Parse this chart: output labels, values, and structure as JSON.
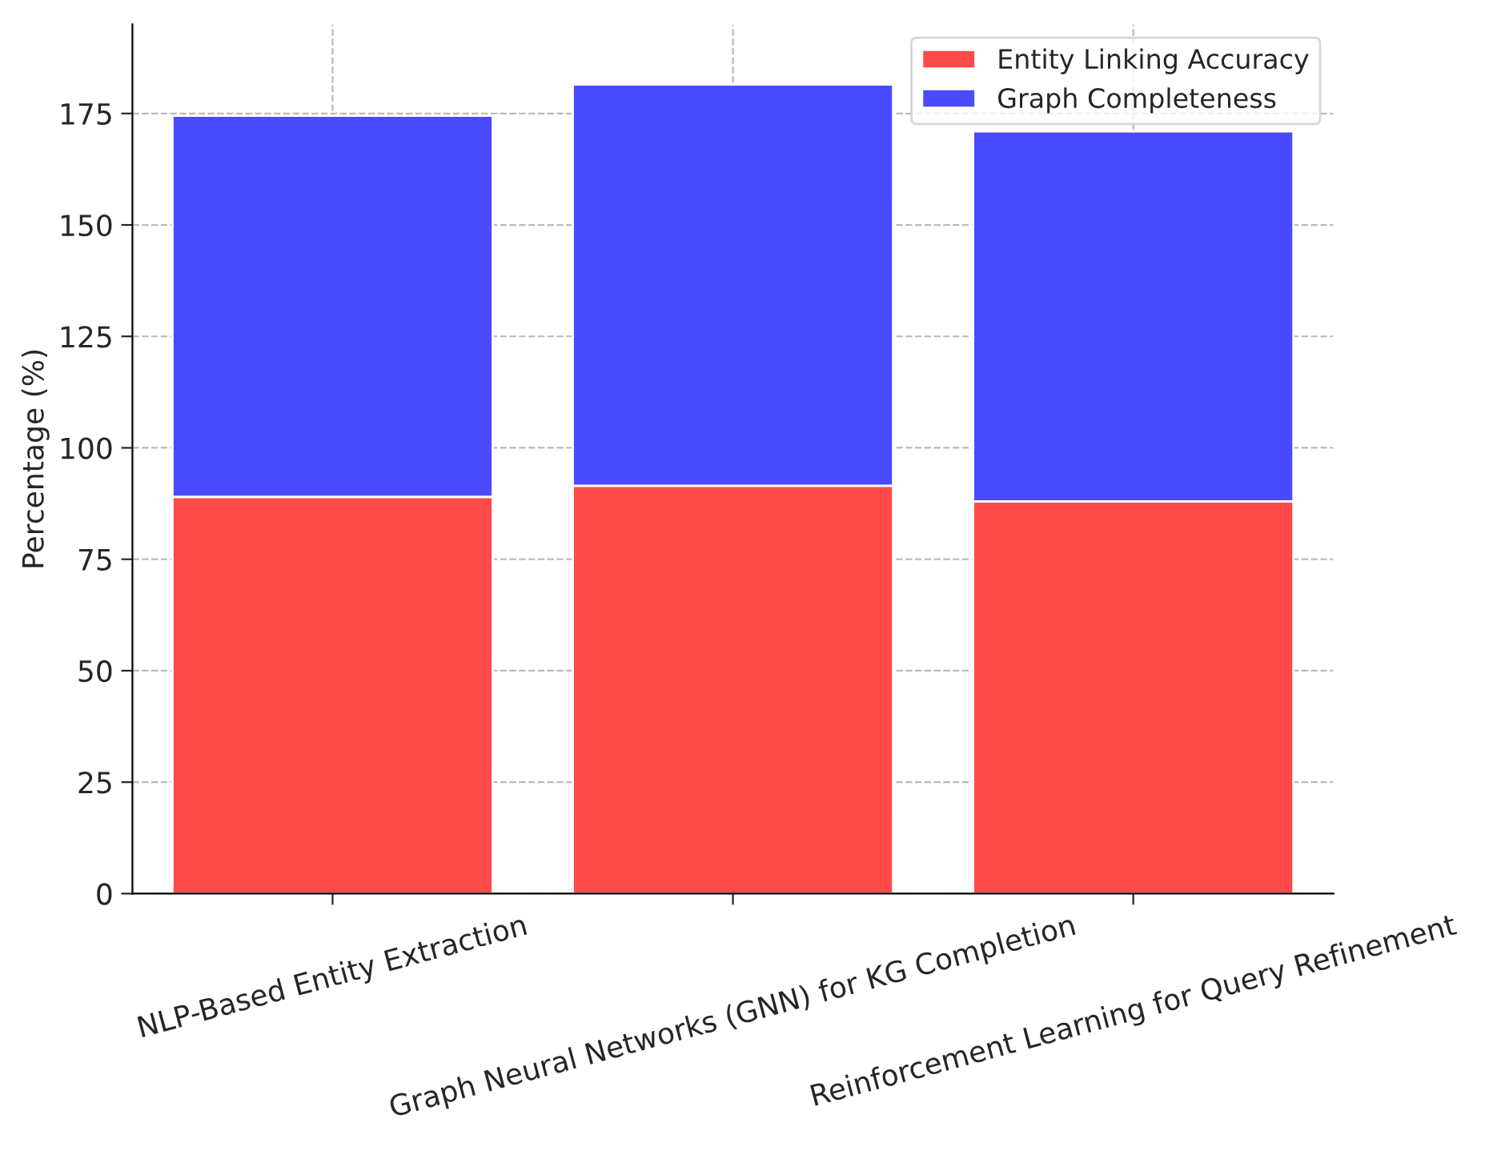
{
  "chart_data": {
    "type": "bar",
    "stacked": true,
    "ylabel": "Percentage (%)",
    "categories": [
      "NLP-Based Entity Extraction",
      "Graph Neural Networks (GNN) for KG Completion",
      "Reinforcement Learning for Query Refinement"
    ],
    "series": [
      {
        "name": "Entity Linking Accuracy",
        "color": "#ff4a4a",
        "values": [
          89,
          91.5,
          88
        ]
      },
      {
        "name": "Graph Completeness",
        "color": "#4a4aff",
        "values": [
          85.5,
          90,
          83
        ]
      }
    ],
    "ylim": [
      0,
      195
    ],
    "yticks": [
      0,
      25,
      50,
      75,
      100,
      125,
      150,
      175
    ],
    "grid": true,
    "legend": "top right"
  }
}
